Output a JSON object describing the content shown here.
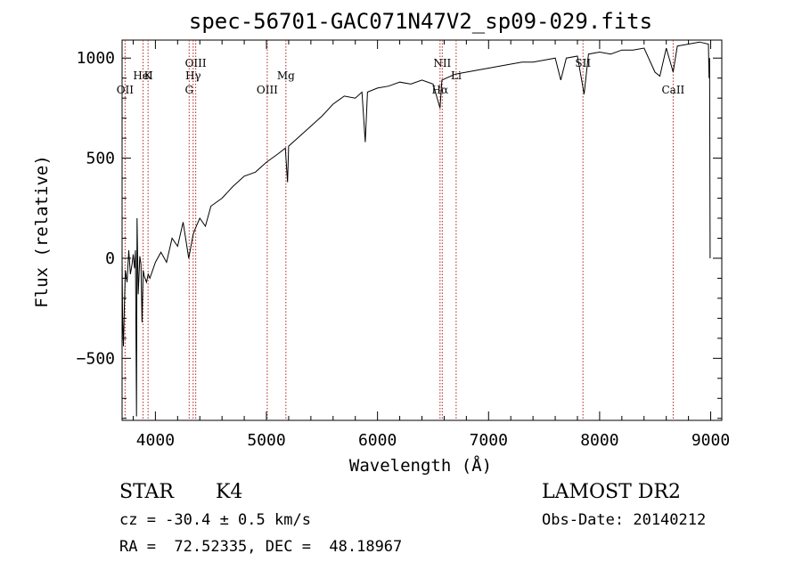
{
  "chart_data": {
    "type": "line",
    "title": "spec-56701-GAC071N47V2_sp09-029.fits",
    "xlabel": "Wavelength (Å)",
    "ylabel": "Flux (relative)",
    "xlim": [
      3700,
      9100
    ],
    "ylim": [
      -810,
      1090
    ],
    "x_ticks": [
      4000,
      5000,
      6000,
      7000,
      8000,
      9000
    ],
    "y_ticks": [
      -500,
      0,
      500,
      1000
    ],
    "series": [
      {
        "points": [
          [
            3700,
            0
          ],
          [
            3705,
            -300
          ],
          [
            3712,
            -440
          ],
          [
            3720,
            -250
          ],
          [
            3730,
            -60
          ],
          [
            3745,
            -120
          ],
          [
            3760,
            40
          ],
          [
            3775,
            -80
          ],
          [
            3790,
            -30
          ],
          [
            3800,
            20
          ],
          [
            3812,
            -50
          ],
          [
            3820,
            40
          ],
          [
            3830,
            -790
          ],
          [
            3835,
            200
          ],
          [
            3845,
            -180
          ],
          [
            3860,
            10
          ],
          [
            3870,
            -30
          ],
          [
            3880,
            -320
          ],
          [
            3890,
            -60
          ],
          [
            3900,
            -90
          ],
          [
            3920,
            -120
          ],
          [
            3935,
            -80
          ],
          [
            3950,
            -100
          ],
          [
            3975,
            -60
          ],
          [
            4000,
            -20
          ],
          [
            4050,
            30
          ],
          [
            4100,
            -20
          ],
          [
            4150,
            100
          ],
          [
            4200,
            60
          ],
          [
            4250,
            180
          ],
          [
            4300,
            0
          ],
          [
            4340,
            120
          ],
          [
            4360,
            150
          ],
          [
            4400,
            200
          ],
          [
            4450,
            160
          ],
          [
            4500,
            260
          ],
          [
            4600,
            300
          ],
          [
            4700,
            360
          ],
          [
            4800,
            410
          ],
          [
            4900,
            430
          ],
          [
            5000,
            480
          ],
          [
            5100,
            520
          ],
          [
            5170,
            550
          ],
          [
            5190,
            380
          ],
          [
            5200,
            560
          ],
          [
            5300,
            610
          ],
          [
            5400,
            660
          ],
          [
            5500,
            710
          ],
          [
            5600,
            770
          ],
          [
            5700,
            810
          ],
          [
            5800,
            800
          ],
          [
            5860,
            830
          ],
          [
            5890,
            580
          ],
          [
            5910,
            830
          ],
          [
            6000,
            850
          ],
          [
            6100,
            860
          ],
          [
            6200,
            880
          ],
          [
            6300,
            870
          ],
          [
            6400,
            890
          ],
          [
            6500,
            870
          ],
          [
            6563,
            750
          ],
          [
            6580,
            890
          ],
          [
            6700,
            920
          ],
          [
            6800,
            930
          ],
          [
            6900,
            940
          ],
          [
            7000,
            950
          ],
          [
            7100,
            960
          ],
          [
            7200,
            970
          ],
          [
            7300,
            980
          ],
          [
            7400,
            980
          ],
          [
            7500,
            990
          ],
          [
            7600,
            1000
          ],
          [
            7650,
            890
          ],
          [
            7700,
            1000
          ],
          [
            7800,
            1010
          ],
          [
            7860,
            820
          ],
          [
            7900,
            1020
          ],
          [
            8000,
            1030
          ],
          [
            8100,
            1020
          ],
          [
            8200,
            1040
          ],
          [
            8300,
            1040
          ],
          [
            8400,
            1050
          ],
          [
            8498,
            930
          ],
          [
            8542,
            910
          ],
          [
            8600,
            1050
          ],
          [
            8662,
            930
          ],
          [
            8700,
            1060
          ],
          [
            8800,
            1070
          ],
          [
            8900,
            1080
          ],
          [
            8980,
            1070
          ],
          [
            8985,
            900
          ],
          [
            8990,
            1000
          ],
          [
            8995,
            0
          ]
        ]
      }
    ],
    "line_marks": [
      {
        "label": "OII",
        "x": 3727
      },
      {
        "label": "K",
        "x": 3934
      },
      {
        "label": "HeI",
        "x": 3889
      },
      {
        "label": "OIII",
        "x": 4363
      },
      {
        "label": "Hγ",
        "x": 4340
      },
      {
        "label": "G",
        "x": 4304
      },
      {
        "label": "OIII",
        "x": 5007
      },
      {
        "label": "Mg",
        "x": 5175
      },
      {
        "label": "NII",
        "x": 6583
      },
      {
        "label": "Hα",
        "x": 6563
      },
      {
        "label": "Li",
        "x": 6708
      },
      {
        "label": "SII",
        "x": 7850
      },
      {
        "label": "CaII",
        "x": 8662
      }
    ]
  },
  "footer": {
    "object_class": "STAR",
    "subclass": "K4",
    "survey": "LAMOST DR2",
    "redshift": "cz = -30.4 ± 0.5 km/s",
    "obs_date": "Obs-Date: 20140212",
    "coords": "RA =  72.52335, DEC =  48.18967"
  },
  "colors": {
    "line_marker": "#b22222",
    "spectrum": "#000000"
  }
}
